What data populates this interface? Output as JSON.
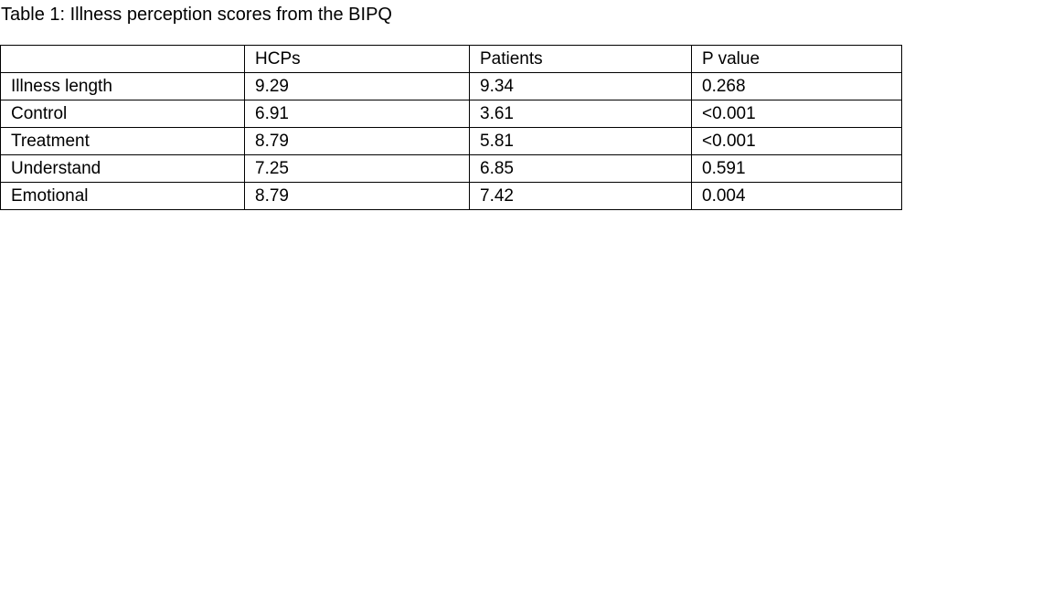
{
  "caption": "Table 1: Illness perception scores from the BIPQ",
  "table": {
    "headers": [
      "",
      "HCPs",
      "Patients",
      "P value"
    ],
    "rows": [
      [
        "Illness length",
        "9.29",
        "9.34",
        "0.268"
      ],
      [
        "Control",
        "6.91",
        "3.61",
        "<0.001"
      ],
      [
        "Treatment",
        "8.79",
        "5.81",
        "<0.001"
      ],
      [
        "Understand",
        "7.25",
        "6.85",
        "0.591"
      ],
      [
        "Emotional",
        "8.79",
        "7.42",
        "0.004"
      ]
    ]
  }
}
